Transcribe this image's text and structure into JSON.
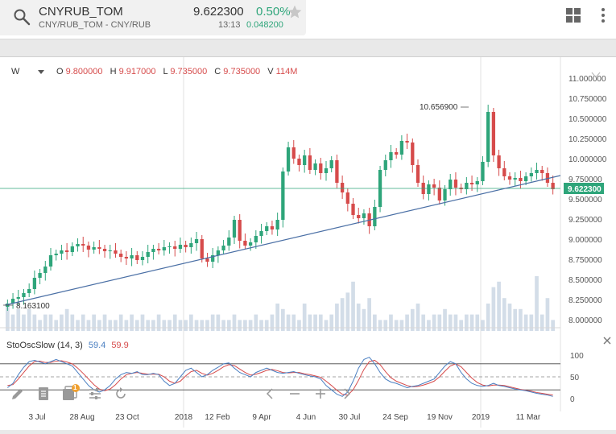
{
  "header": {
    "symbol": "CNYRUB_TOM",
    "pair_description": "CNY/RUB_TOM - CNY/RUB",
    "price": "9.622300",
    "change_pct": "0.50%",
    "time": "13:13",
    "change_abs": "0.048200",
    "colors": {
      "up": "#2ea57a",
      "down": "#d64b4b",
      "accent": "#4a7fc1"
    },
    "icons": [
      "search-icon",
      "star-icon",
      "grid-icon",
      "more-vert-icon"
    ]
  },
  "ohlc": {
    "interval": "W",
    "o_label": "O",
    "o": "9.800000",
    "h_label": "H",
    "h": "9.917000",
    "l_label": "L",
    "l": "9.735000",
    "c_label": "C",
    "c": "9.735000",
    "v_label": "V",
    "v": "114M"
  },
  "indicator": {
    "name": "StoOscSlow (14, 3)",
    "k": "59.4",
    "d": "59.9"
  },
  "toolbar": {
    "icons": [
      "pencil-icon",
      "document-icon",
      "layers-icon",
      "sliders-icon",
      "refresh-icon",
      "chevron-left-icon",
      "zoom-out-icon",
      "zoom-in-icon",
      "chevron-right-icon"
    ],
    "layers_badge": "1"
  },
  "chart_data": {
    "type": "candlestick",
    "interval": "W",
    "price_axis": [
      "11.000000",
      "10.750000",
      "10.500000",
      "10.250000",
      "10.000000",
      "9.750000",
      "9.500000",
      "9.250000",
      "9.000000",
      "8.750000",
      "8.500000",
      "8.250000",
      "8.000000"
    ],
    "ylim": [
      8.0,
      11.0
    ],
    "last_price_label": "9.622300",
    "annotations": {
      "high": "10.656900",
      "low": "8.163100"
    },
    "oscillator_axis": [
      "100",
      "50",
      "0"
    ],
    "oscillator_levels": [
      80,
      20
    ],
    "x_labels": [
      "3 Jul",
      "28 Aug",
      "23 Oct",
      "2018",
      "12 Feb",
      "9 Apr",
      "4 Jun",
      "30 Jul",
      "24 Sep",
      "19 Nov",
      "2019",
      "11 Mar"
    ],
    "close": [
      8.2,
      8.26,
      8.28,
      8.33,
      8.38,
      8.52,
      8.58,
      8.66,
      8.8,
      8.82,
      8.86,
      8.84,
      8.91,
      8.94,
      8.92,
      8.87,
      8.9,
      8.88,
      8.85,
      8.86,
      8.82,
      8.78,
      8.76,
      8.8,
      8.74,
      8.78,
      8.84,
      8.88,
      8.86,
      8.9,
      8.91,
      8.88,
      8.93,
      8.9,
      8.95,
      9.0,
      8.76,
      8.72,
      8.8,
      8.86,
      8.92,
      9.02,
      9.24,
      8.98,
      8.92,
      8.96,
      9.04,
      9.1,
      9.16,
      9.12,
      9.24,
      9.84,
      10.14,
      10.0,
      9.92,
      10.04,
      9.86,
      9.94,
      9.82,
      9.88,
      9.98,
      9.7,
      9.58,
      9.44,
      9.3,
      9.26,
      9.32,
      9.16,
      9.4,
      9.86,
      9.98,
      10.08,
      10.05,
      10.22,
      10.2,
      9.92,
      9.7,
      9.56,
      9.68,
      9.64,
      9.48,
      9.62,
      9.74,
      9.64,
      9.62,
      9.7,
      9.68,
      9.72,
      9.96,
      10.58,
      10.04,
      9.88,
      9.78,
      9.74,
      9.76,
      9.72,
      9.78,
      9.82,
      9.86,
      9.82,
      9.7,
      9.62
    ],
    "volume": [
      0.5,
      0.3,
      0.4,
      0.3,
      0.4,
      0.3,
      0.2,
      0.3,
      0.3,
      0.2,
      0.3,
      0.4,
      0.3,
      0.2,
      0.3,
      0.2,
      0.3,
      0.2,
      0.3,
      0.2,
      0.2,
      0.3,
      0.2,
      0.3,
      0.2,
      0.3,
      0.2,
      0.2,
      0.3,
      0.2,
      0.2,
      0.3,
      0.2,
      0.2,
      0.3,
      0.2,
      0.2,
      0.2,
      0.3,
      0.3,
      0.2,
      0.2,
      0.3,
      0.2,
      0.2,
      0.2,
      0.3,
      0.2,
      0.2,
      0.3,
      0.5,
      0.4,
      0.3,
      0.3,
      0.2,
      0.5,
      0.3,
      0.3,
      0.3,
      0.2,
      0.3,
      0.5,
      0.6,
      0.7,
      0.9,
      0.5,
      0.4,
      0.6,
      0.3,
      0.2,
      0.2,
      0.3,
      0.2,
      0.2,
      0.3,
      0.4,
      0.5,
      0.3,
      0.2,
      0.3,
      0.3,
      0.4,
      0.3,
      0.3,
      0.2,
      0.3,
      0.3,
      0.3,
      0.2,
      0.5,
      0.8,
      0.9,
      0.6,
      0.5,
      0.4,
      0.4,
      0.3,
      0.3,
      1.0,
      0.3,
      0.6,
      0.2
    ],
    "stoch_k": [
      25,
      35,
      55,
      72,
      85,
      88,
      84,
      80,
      85,
      90,
      85,
      80,
      75,
      60,
      45,
      30,
      20,
      15,
      20,
      30,
      45,
      55,
      60,
      58,
      62,
      55,
      55,
      58,
      55,
      40,
      30,
      35,
      50,
      65,
      70,
      60,
      50,
      55,
      65,
      72,
      80,
      82,
      70,
      60,
      55,
      50,
      60,
      65,
      70,
      65,
      60,
      58,
      60,
      62,
      58,
      55,
      52,
      50,
      45,
      30,
      20,
      10,
      5,
      15,
      40,
      70,
      90,
      95,
      80,
      60,
      45,
      38,
      35,
      30,
      25,
      28,
      30,
      35,
      40,
      45,
      60,
      75,
      85,
      80,
      60,
      45,
      35,
      30,
      28,
      30,
      35,
      30,
      28,
      25,
      22,
      20,
      18,
      15,
      12,
      10,
      8,
      5
    ],
    "stoch_d": [
      30,
      32,
      45,
      60,
      75,
      85,
      86,
      83,
      83,
      86,
      87,
      84,
      80,
      70,
      58,
      45,
      32,
      22,
      18,
      22,
      32,
      45,
      55,
      58,
      60,
      58,
      56,
      56,
      56,
      50,
      40,
      35,
      40,
      52,
      62,
      65,
      58,
      54,
      58,
      65,
      73,
      78,
      76,
      68,
      60,
      54,
      56,
      60,
      65,
      67,
      64,
      60,
      59,
      60,
      60,
      57,
      55,
      52,
      49,
      40,
      30,
      19,
      10,
      8,
      20,
      42,
      67,
      85,
      88,
      78,
      62,
      48,
      40,
      35,
      30,
      27,
      28,
      31,
      35,
      40,
      50,
      63,
      75,
      80,
      73,
      60,
      47,
      37,
      31,
      29,
      31,
      31,
      30,
      27,
      24,
      21,
      19,
      17,
      14,
      12,
      10,
      8
    ]
  }
}
